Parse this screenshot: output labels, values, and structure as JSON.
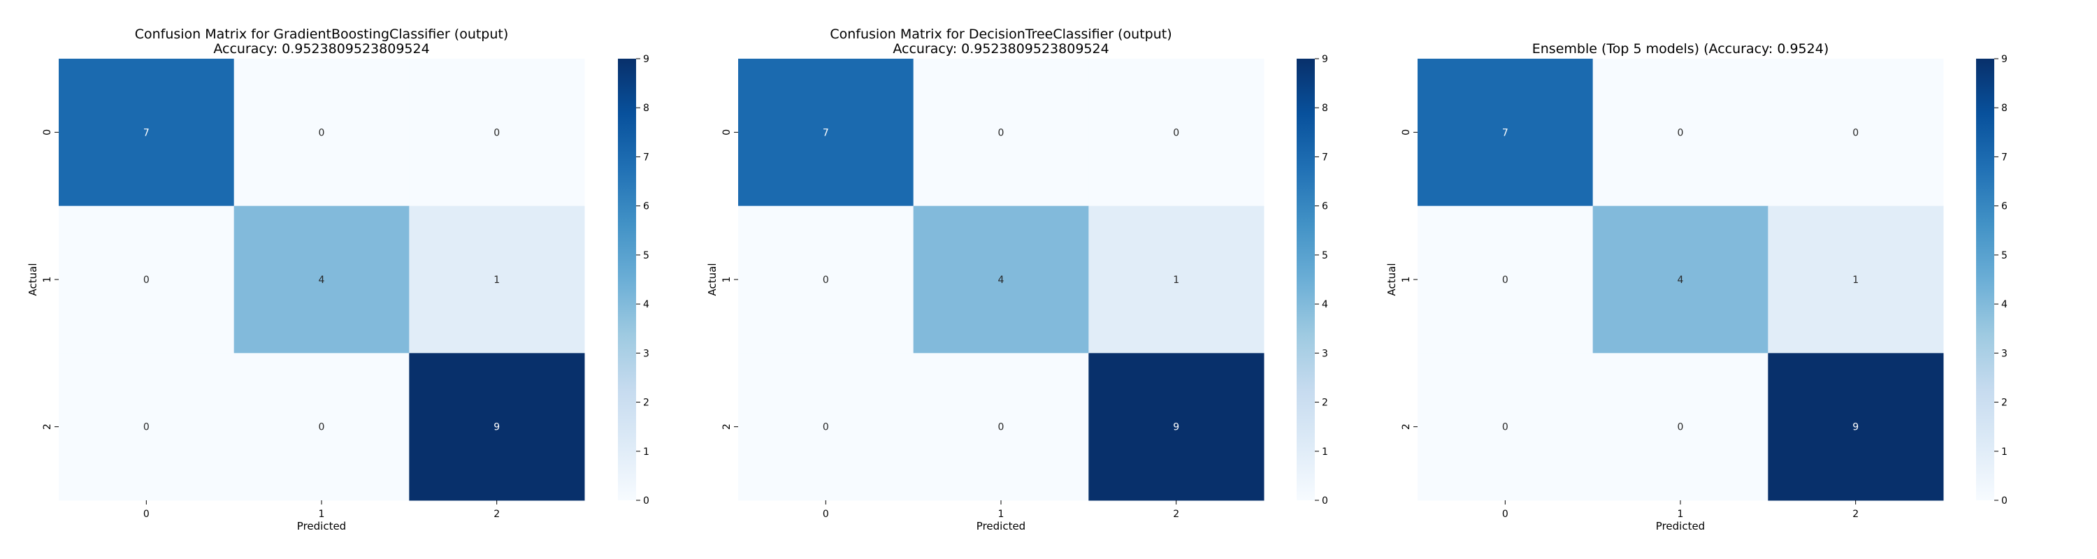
{
  "chart_data": [
    {
      "type": "heatmap",
      "title_lines": [
        "Confusion Matrix for GradientBoostingClassifier (output)",
        "Accuracy: 0.9523809523809524"
      ],
      "xlabel": "Predicted",
      "ylabel": "Actual",
      "x_categories": [
        "0",
        "1",
        "2"
      ],
      "y_categories": [
        "0",
        "1",
        "2"
      ],
      "values": [
        [
          7,
          0,
          0
        ],
        [
          0,
          4,
          1
        ],
        [
          0,
          0,
          9
        ]
      ],
      "colorscale": "Blues",
      "vmin": 0,
      "vmax": 9,
      "colorbar_ticks": [
        "0",
        "1",
        "2",
        "3",
        "4",
        "5",
        "6",
        "7",
        "8",
        "9"
      ]
    },
    {
      "type": "heatmap",
      "title_lines": [
        "Confusion Matrix for DecisionTreeClassifier (output)",
        "Accuracy: 0.9523809523809524"
      ],
      "xlabel": "Predicted",
      "ylabel": "Actual",
      "x_categories": [
        "0",
        "1",
        "2"
      ],
      "y_categories": [
        "0",
        "1",
        "2"
      ],
      "values": [
        [
          7,
          0,
          0
        ],
        [
          0,
          4,
          1
        ],
        [
          0,
          0,
          9
        ]
      ],
      "colorscale": "Blues",
      "vmin": 0,
      "vmax": 9,
      "colorbar_ticks": [
        "0",
        "1",
        "2",
        "3",
        "4",
        "5",
        "6",
        "7",
        "8",
        "9"
      ]
    },
    {
      "type": "heatmap",
      "title_lines": [
        "Ensemble (Top 5 models) (Accuracy: 0.9524)"
      ],
      "xlabel": "Predicted",
      "ylabel": "Actual",
      "x_categories": [
        "0",
        "1",
        "2"
      ],
      "y_categories": [
        "0",
        "1",
        "2"
      ],
      "values": [
        [
          7,
          0,
          0
        ],
        [
          0,
          4,
          1
        ],
        [
          0,
          0,
          9
        ]
      ],
      "colorscale": "Blues",
      "vmin": 0,
      "vmax": 9,
      "colorbar_ticks": [
        "0",
        "1",
        "2",
        "3",
        "4",
        "5",
        "6",
        "7",
        "8",
        "9"
      ]
    }
  ]
}
